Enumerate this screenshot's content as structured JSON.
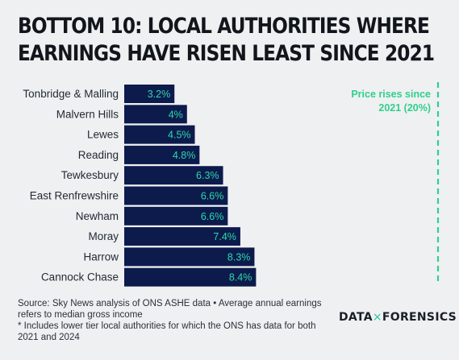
{
  "title_lines": [
    "BOTTOM 10: LOCAL AUTHORITIES WHERE",
    "EARNINGS HAVE RISEN LEAST SINCE 2021"
  ],
  "colors": {
    "bar": "#0d1b4c",
    "value_text": "#2bd9ac",
    "reference": "#2fd08e",
    "label": "#232a36"
  },
  "chart_data": {
    "type": "bar",
    "orientation": "horizontal",
    "categories": [
      "Tonbridge & Malling",
      "Malvern Hills",
      "Lewes",
      "Reading",
      "Tewkesbury",
      "East Renfrewshire",
      "Newham",
      "Moray",
      "Harrow",
      "Cannock Chase"
    ],
    "values": [
      3.2,
      4,
      4.5,
      4.8,
      6.3,
      6.6,
      6.6,
      7.4,
      8.3,
      8.4
    ],
    "value_labels": [
      "3.2%",
      "4%",
      "4.5%",
      "4.8%",
      "6.3%",
      "6.6%",
      "6.6%",
      "7.4%",
      "8.3%",
      "8.4%"
    ],
    "reference": {
      "value": 20,
      "label_lines": [
        "Price rises since",
        "2021 (20%)"
      ],
      "style": "dashed"
    },
    "xlim": [
      0,
      20
    ]
  },
  "source_lines": [
    "Source: Sky News analysis of ONS ASHE data • Average annual earnings",
    "refers to median gross income",
    "* Includes lower tier local authorities for which the ONS has data for both",
    "2021 and 2024"
  ],
  "logo": {
    "left": "DATA",
    "sep": "×",
    "right": "FORENSICS"
  }
}
